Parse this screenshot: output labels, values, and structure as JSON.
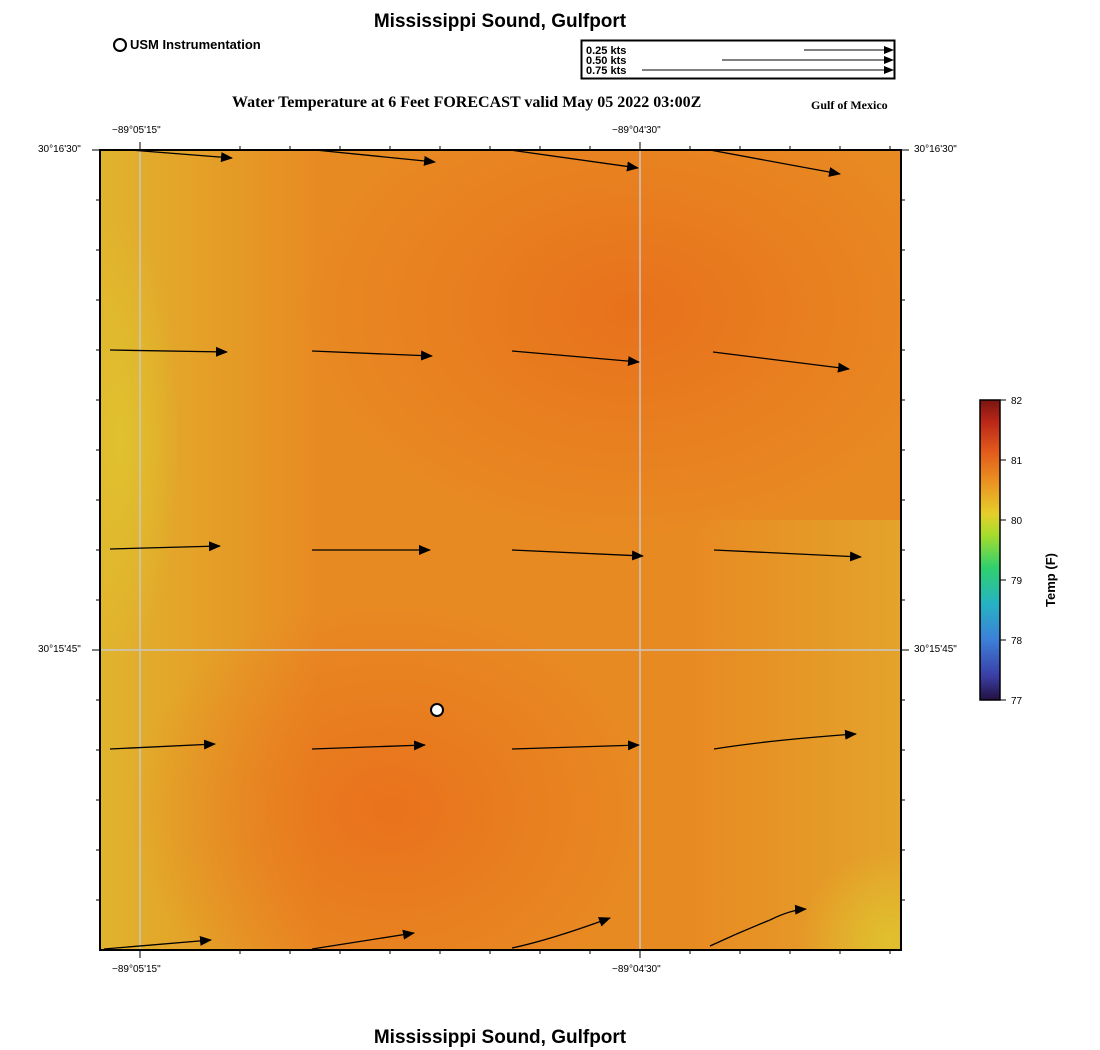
{
  "header": {
    "title": "Mississippi Sound, Gulfport",
    "subtitle": "Water Temperature at 6 Feet FORECAST valid May 05 2022 03:00Z",
    "region_label": "Gulf of Mexico",
    "footer_title": "Mississippi Sound, Gulfport"
  },
  "legend": {
    "station_label": "USM Instrumentation",
    "speed_scale": [
      "0.25 kts",
      "0.50 kts",
      "0.75 kts"
    ]
  },
  "axes": {
    "lon_ticks": [
      "−89°05'15\"",
      "−89°04'30\""
    ],
    "lat_ticks": [
      "30°16'30\"",
      "30°15'45\""
    ]
  },
  "colorbar": {
    "label": "Temp (F)",
    "ticks": [
      "82",
      "81",
      "80",
      "79",
      "78",
      "77"
    ],
    "min": 77,
    "max": 82
  },
  "colors": {
    "field_dominant": "#e8841f",
    "field_warm": "#e8701c",
    "field_cool": "#e0b22c",
    "grid": "#c8c8c8"
  }
}
